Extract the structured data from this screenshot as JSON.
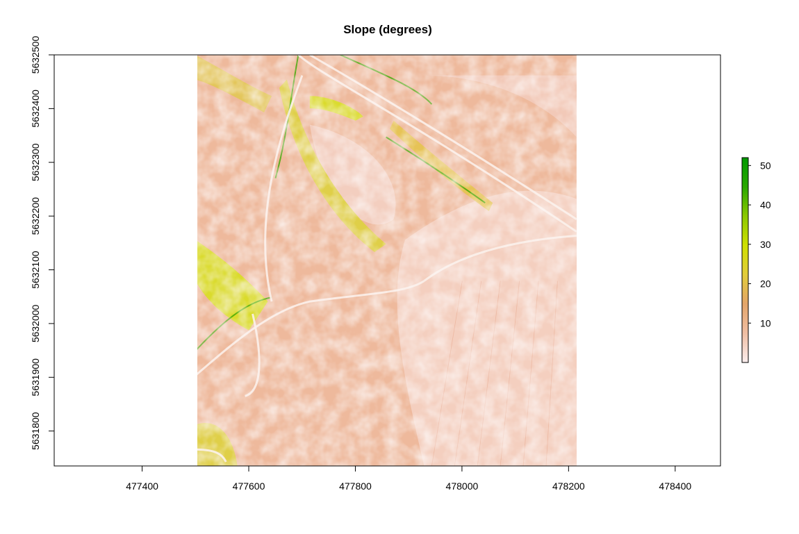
{
  "chart_data": {
    "type": "heatmap",
    "title": "Slope (degrees)",
    "xlabel": "",
    "ylabel": "",
    "xlim": [
      477235,
      478485
    ],
    "ylim": [
      5631735,
      5632500
    ],
    "raster_extent": {
      "x": [
        477500,
        478215
      ],
      "y": [
        5631735,
        5632500
      ]
    },
    "x_ticks": [
      "477400",
      "477600",
      "477800",
      "478000",
      "478200",
      "478400"
    ],
    "y_ticks": [
      "5631800",
      "5631900",
      "5632000",
      "5632100",
      "5632200",
      "5632300",
      "5632400",
      "5632500"
    ],
    "colorbar": {
      "range": [
        0,
        52
      ],
      "ticks": [
        "10",
        "20",
        "30",
        "40",
        "50"
      ],
      "colors": [
        "#fbeeee",
        "#f0bea3",
        "#e3a56a",
        "#e2cc3a",
        "#cfe000",
        "#8cc800",
        "#2aa800",
        "#009900"
      ]
    },
    "grid": false,
    "legend_position": "right"
  }
}
